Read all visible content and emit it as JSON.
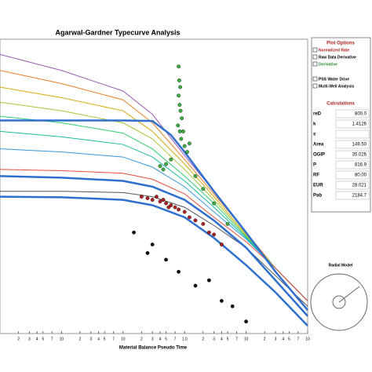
{
  "chart_data": {
    "type": "line",
    "title": "Agarwal-Gardner Typecurve Analysis",
    "x_label": "Material Balance Pseudo Time",
    "log_x": true,
    "log_y": true,
    "xlim": [
      0.001,
      100
    ],
    "ylim": [
      0.001,
      20
    ],
    "xticks": [
      {
        "value": 0.002,
        "label": "2"
      },
      {
        "value": 0.003,
        "label": "3"
      },
      {
        "value": 0.004,
        "label": "4"
      },
      {
        "value": 0.005,
        "label": "5"
      },
      {
        "value": 0.007,
        "label": "7"
      },
      {
        "value": 0.01,
        "label": "10"
      },
      {
        "value": 0.02,
        "label": "2"
      },
      {
        "value": 0.03,
        "label": "3"
      },
      {
        "value": 0.04,
        "label": "4"
      },
      {
        "value": 0.05,
        "label": "5"
      },
      {
        "value": 0.07,
        "label": "7"
      },
      {
        "value": 0.1,
        "label": "10"
      },
      {
        "value": 0.2,
        "label": "2"
      },
      {
        "value": 0.3,
        "label": "3"
      },
      {
        "value": 0.4,
        "label": "4"
      },
      {
        "value": 0.5,
        "label": "5"
      },
      {
        "value": 0.7,
        "label": "7"
      },
      {
        "value": 1,
        "label": "1.0"
      },
      {
        "value": 2,
        "label": "2"
      },
      {
        "value": 3,
        "label": "3"
      },
      {
        "value": 4,
        "label": "4"
      },
      {
        "value": 5,
        "label": "5"
      },
      {
        "value": 7,
        "label": "7"
      },
      {
        "value": 10,
        "label": "10"
      },
      {
        "value": 20,
        "label": "2"
      },
      {
        "value": 30,
        "label": "3"
      },
      {
        "value": 40,
        "label": "4"
      },
      {
        "value": 50,
        "label": "5"
      },
      {
        "value": 70,
        "label": "7"
      },
      {
        "value": 100,
        "label": "10"
      }
    ],
    "series": [
      {
        "type": "line",
        "color": "#9b59b6",
        "x": [
          0.001,
          0.01,
          0.1,
          0.3,
          1,
          3,
          10,
          30,
          100
        ],
        "values": [
          12,
          7,
          3.5,
          1.6,
          0.4,
          0.12,
          0.03,
          0.009,
          0.003
        ]
      },
      {
        "type": "line",
        "color": "#e67e22",
        "x": [
          0.001,
          0.01,
          0.1,
          0.3,
          1,
          3,
          10,
          30,
          100
        ],
        "values": [
          7,
          4.5,
          2.6,
          1.2,
          0.35,
          0.11,
          0.03,
          0.009,
          0.003
        ]
      },
      {
        "type": "line",
        "color": "#d4ac0d",
        "x": [
          0.001,
          0.01,
          0.1,
          0.3,
          1,
          3,
          10,
          30,
          100
        ],
        "values": [
          4,
          2.8,
          1.8,
          0.9,
          0.3,
          0.1,
          0.028,
          0.009,
          0.003
        ]
      },
      {
        "type": "line",
        "color": "#a4c639",
        "x": [
          0.001,
          0.01,
          0.1,
          0.3,
          1,
          3,
          10,
          30,
          100
        ],
        "values": [
          2.4,
          1.8,
          1.2,
          0.7,
          0.25,
          0.09,
          0.027,
          0.009,
          0.003
        ]
      },
      {
        "type": "line",
        "color": "#2ecc71",
        "x": [
          0.001,
          0.01,
          0.1,
          0.3,
          1,
          3,
          10,
          30,
          100
        ],
        "values": [
          1.5,
          1.2,
          0.85,
          0.5,
          0.2,
          0.08,
          0.026,
          0.009,
          0.003
        ]
      },
      {
        "type": "line",
        "color": "#1abc9c",
        "x": [
          0.001,
          0.01,
          0.1,
          0.3,
          1,
          3,
          10,
          30,
          100
        ],
        "values": [
          0.9,
          0.75,
          0.58,
          0.38,
          0.17,
          0.07,
          0.025,
          0.009,
          0.003
        ]
      },
      {
        "type": "line",
        "color": "#3498db",
        "x": [
          0.001,
          0.01,
          0.1,
          0.3,
          1,
          3,
          10,
          30,
          100
        ],
        "values": [
          0.5,
          0.45,
          0.38,
          0.27,
          0.14,
          0.06,
          0.024,
          0.009,
          0.003
        ]
      },
      {
        "type": "line",
        "color": "#e74c3c",
        "x": [
          0.001,
          0.01,
          0.1,
          0.3,
          1,
          3,
          10,
          30,
          100
        ],
        "values": [
          0.25,
          0.24,
          0.22,
          0.18,
          0.11,
          0.05,
          0.022,
          0.009,
          0.003
        ]
      },
      {
        "type": "line",
        "color": "#555555",
        "x": [
          0.001,
          0.01,
          0.1,
          0.3,
          1,
          3,
          10,
          30,
          100
        ],
        "values": [
          0.12,
          0.12,
          0.115,
          0.1,
          0.07,
          0.038,
          0.018,
          0.007,
          0.0025
        ]
      },
      {
        "type": "line",
        "color": "#2f6fd0",
        "width": 2.5,
        "x": [
          0.001,
          0.01,
          0.1,
          0.3,
          0.6,
          1,
          3,
          10,
          30,
          100
        ],
        "values": [
          1.3,
          1.3,
          1.3,
          1.28,
          0.8,
          0.45,
          0.12,
          0.03,
          0.008,
          0.0022
        ]
      },
      {
        "type": "line",
        "color": "#2f6fd0",
        "width": 2.5,
        "x": [
          0.001,
          0.01,
          0.1,
          0.3,
          1,
          3,
          10,
          30,
          100
        ],
        "values": [
          0.2,
          0.19,
          0.17,
          0.14,
          0.09,
          0.045,
          0.018,
          0.006,
          0.0018
        ]
      },
      {
        "type": "line",
        "color": "#2f6fd0",
        "width": 2.5,
        "x": [
          0.001,
          0.01,
          0.1,
          0.3,
          1,
          3,
          10,
          30,
          100
        ],
        "values": [
          0.1,
          0.098,
          0.09,
          0.075,
          0.05,
          0.025,
          0.01,
          0.004,
          0.0013
        ]
      },
      {
        "type": "scatter",
        "color": "#3cb043",
        "x": [
          0.8,
          0.82,
          0.85,
          0.8,
          0.83,
          0.86,
          0.9,
          0.78,
          0.84,
          0.88,
          1.0,
          1.1,
          0.6,
          0.5,
          0.45,
          1.5,
          2,
          3,
          5,
          0.4,
          1.2,
          0.95
        ],
        "values": [
          8,
          5,
          4,
          3,
          2.2,
          1.8,
          1.4,
          1.1,
          0.9,
          0.7,
          0.55,
          0.45,
          0.35,
          0.3,
          0.25,
          0.2,
          0.13,
          0.08,
          0.04,
          0.28,
          0.6,
          0.9
        ]
      },
      {
        "type": "scatter",
        "color": "#b22222",
        "x": [
          0.2,
          0.25,
          0.3,
          0.35,
          0.4,
          0.5,
          0.6,
          0.7,
          0.8,
          1,
          1.2,
          1.5,
          2,
          2.5,
          3,
          4,
          0.45,
          0.55
        ],
        "values": [
          0.1,
          0.095,
          0.09,
          0.1,
          0.085,
          0.08,
          0.075,
          0.07,
          0.065,
          0.06,
          0.05,
          0.045,
          0.04,
          0.03,
          0.028,
          0.02,
          0.09,
          0.07
        ]
      },
      {
        "type": "scatter",
        "color": "#111111",
        "x": [
          0.3,
          0.5,
          0.8,
          1.5,
          2.5,
          4,
          6,
          10,
          0.15,
          0.25
        ],
        "values": [
          0.02,
          0.012,
          0.008,
          0.005,
          0.006,
          0.003,
          0.0025,
          0.0015,
          0.03,
          0.015
        ]
      }
    ]
  },
  "panel": {
    "plot_options": {
      "title": "Plot Options",
      "items": [
        "Normalized Rate",
        "Raw Data Derivative",
        "Derivative",
        "PSS Water Drive",
        "Multi-Well Analysis"
      ],
      "colors": [
        "#b22222",
        "#000000",
        "#2e8b2e",
        "#000000",
        "#000000"
      ]
    },
    "calculations": {
      "title": "Calculations",
      "rows": [
        [
          "reD",
          "800.0"
        ],
        [
          "k",
          "1.4126"
        ],
        [
          "s",
          ""
        ],
        [
          "Area",
          "149.50"
        ],
        [
          "OGIP",
          "35.026"
        ],
        [
          "P",
          "816.9"
        ],
        [
          "RF",
          "80.00"
        ],
        [
          "EUR",
          "28.021"
        ],
        [
          "Pab",
          "2184.7"
        ]
      ]
    },
    "radial_model": "Radial Model"
  }
}
